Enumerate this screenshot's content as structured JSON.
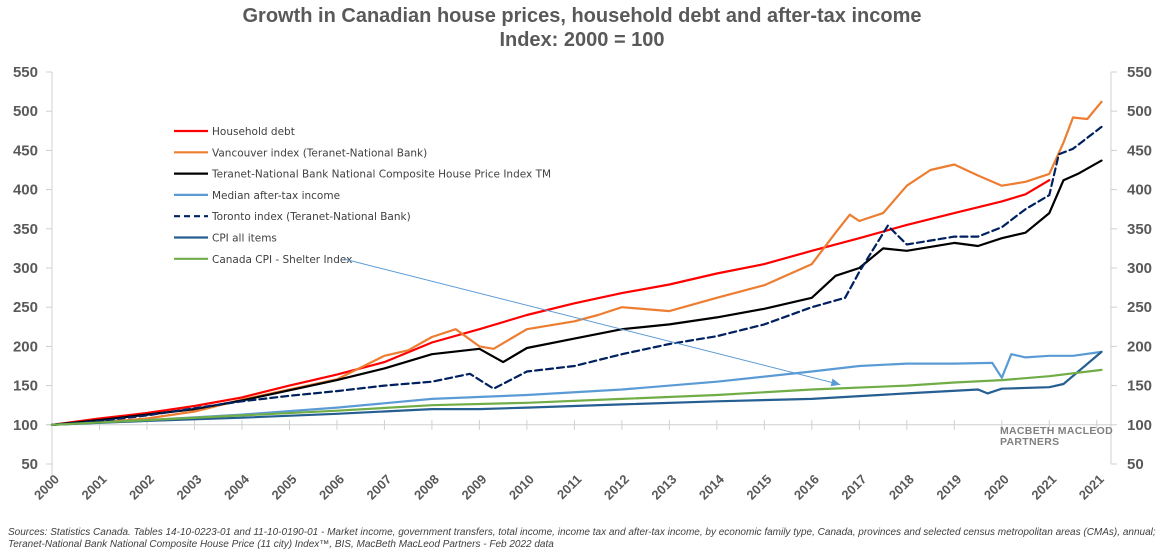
{
  "chart_data": {
    "type": "line",
    "title": "Growth in Canadian house prices, household debt and after-tax income",
    "subtitle": "Index: 2000 = 100",
    "xlabel": "",
    "ylabel": "",
    "ylim": [
      50,
      550
    ],
    "yticks": [
      50,
      100,
      150,
      200,
      250,
      300,
      350,
      400,
      450,
      500,
      550
    ],
    "xlim": [
      2000,
      2021.5
    ],
    "x_tick_labels": [
      "2000",
      "2001",
      "2002",
      "2003",
      "2004",
      "2005",
      "2006",
      "2007",
      "2008",
      "2009",
      "2010",
      "2011",
      "2012",
      "2013",
      "2014",
      "2015",
      "2016",
      "2017",
      "2018",
      "2019",
      "2020",
      "2021",
      "2021"
    ],
    "grid": false,
    "secondary_y_axis": true,
    "legend_position": "top-left",
    "annotation": {
      "text": "Canada CPI - Shelter Index",
      "arrow_to": [
        2016.6,
        150
      ]
    },
    "series": [
      {
        "name": "Household debt",
        "color": "#ff0000",
        "style": "solid",
        "x": [
          2000,
          2001,
          2002,
          2003,
          2004,
          2005,
          2006,
          2007,
          2008,
          2009,
          2010,
          2011,
          2012,
          2013,
          2014,
          2015,
          2016,
          2017,
          2018,
          2019,
          2020,
          2020.5,
          2021.0
        ],
        "values": [
          100,
          108,
          115,
          124,
          135,
          150,
          164,
          180,
          205,
          222,
          240,
          255,
          268,
          279,
          293,
          305,
          322,
          338,
          355,
          370,
          385,
          394,
          412
        ]
      },
      {
        "name": "Vancouver index (Teranet-National Bank)",
        "color": "#ed7d31",
        "style": "solid",
        "x": [
          2000,
          2001,
          2002,
          2003,
          2004,
          2005,
          2006,
          2007,
          2007.5,
          2008,
          2008.5,
          2009,
          2009.3,
          2010,
          2011,
          2011.5,
          2012,
          2013,
          2014,
          2015,
          2016,
          2016.5,
          2016.8,
          2017,
          2017.5,
          2018,
          2018.5,
          2019,
          2019.5,
          2020,
          2020.5,
          2021,
          2021.3,
          2021.5,
          2021.8,
          2022.1
        ],
        "values": [
          100,
          103,
          108,
          117,
          132,
          145,
          158,
          188,
          195,
          212,
          222,
          200,
          197,
          222,
          232,
          240,
          250,
          245,
          262,
          278,
          305,
          345,
          368,
          360,
          370,
          405,
          425,
          432,
          418,
          405,
          410,
          420,
          460,
          492,
          490,
          512
        ]
      },
      {
        "name": "Teranet-National Bank National Composite House Price Index TM",
        "color": "#000000",
        "style": "solid",
        "x": [
          2000,
          2001,
          2002,
          2003,
          2004,
          2005,
          2006,
          2007,
          2008,
          2009,
          2009.5,
          2010,
          2011,
          2012,
          2013,
          2014,
          2015,
          2016,
          2016.5,
          2017,
          2017.5,
          2018,
          2019,
          2019.5,
          2020,
          2020.5,
          2021,
          2021.3,
          2021.6,
          2022.1
        ],
        "values": [
          100,
          106,
          113,
          120,
          131,
          144,
          157,
          172,
          190,
          197,
          180,
          198,
          210,
          222,
          228,
          237,
          248,
          262,
          290,
          300,
          325,
          322,
          332,
          328,
          338,
          345,
          370,
          412,
          420,
          437
        ]
      },
      {
        "name": "Median after-tax income",
        "color": "#5b9bd5",
        "style": "solid",
        "x": [
          2000,
          2002,
          2004,
          2006,
          2008,
          2010,
          2012,
          2014,
          2016,
          2017,
          2018,
          2019,
          2019.8,
          2020.0,
          2020.2,
          2020.5,
          2021,
          2021.5,
          2022.1
        ],
        "values": [
          100,
          106,
          113,
          122,
          133,
          138,
          145,
          155,
          168,
          175,
          178,
          178,
          179,
          160,
          190,
          186,
          188,
          188,
          193
        ]
      },
      {
        "name": "Toronto index (Teranet-National Bank)",
        "color": "#002060",
        "style": "dashed",
        "x": [
          2000,
          2001,
          2002,
          2003,
          2004,
          2005,
          2006,
          2007,
          2008,
          2008.8,
          2009.3,
          2010,
          2011,
          2012,
          2013,
          2014,
          2015,
          2016,
          2016.7,
          2017,
          2017.6,
          2018,
          2019,
          2019.5,
          2020,
          2020.5,
          2021,
          2021.2,
          2021.5,
          2022.1
        ],
        "values": [
          100,
          105,
          112,
          121,
          130,
          137,
          143,
          150,
          155,
          165,
          146,
          168,
          175,
          190,
          203,
          213,
          228,
          250,
          262,
          295,
          354,
          330,
          340,
          340,
          352,
          375,
          393,
          445,
          452,
          480
        ]
      },
      {
        "name": "CPI all items",
        "color": "#255e91",
        "style": "solid",
        "x": [
          2000,
          2002,
          2004,
          2006,
          2008,
          2009,
          2010,
          2012,
          2014,
          2016,
          2018,
          2019.5,
          2019.7,
          2020,
          2021,
          2021.3,
          2022.1
        ],
        "values": [
          100,
          105,
          109,
          114,
          120,
          120,
          122,
          126,
          130,
          133,
          140,
          145,
          140,
          146,
          148,
          152,
          193
        ]
      },
      {
        "name": "Canada CPI - Shelter Index",
        "color": "#70ad47",
        "style": "solid",
        "x": [
          2000,
          2002,
          2004,
          2006,
          2008,
          2010,
          2012,
          2014,
          2016,
          2018,
          2019,
          2020,
          2021,
          2022.1
        ],
        "values": [
          100,
          106,
          112,
          118,
          125,
          128,
          133,
          138,
          145,
          150,
          154,
          157,
          162,
          170
        ]
      }
    ]
  },
  "watermark": {
    "line1": "MacBeth MacLeod",
    "line2": "Partners"
  },
  "source_note": "Sources: Statistics Canada. Tables 14-10-0223-01 and 11-10-0190-01 -  Market income, government transfers, total income, income tax and after-tax income, by economic family type, Canada, provinces and selected census metropolitan areas (CMAs), annual; Teranet-National Bank National Composite House Price (11 city) Index™, BIS, MacBeth MacLeod Partners - Feb 2022 data"
}
